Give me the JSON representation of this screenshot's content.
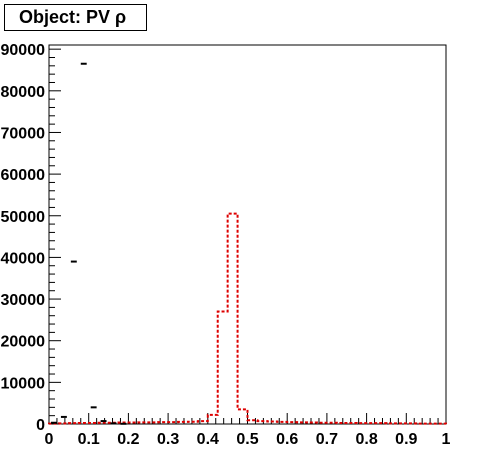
{
  "chart_data": {
    "type": "histogram",
    "title": "Object: PV ρ",
    "xlim": [
      0,
      1
    ],
    "ylim": [
      0,
      91000
    ],
    "bin_width": 0.025,
    "x_ticks": [
      "0",
      "0.1",
      "0.2",
      "0.3",
      "0.4",
      "0.5",
      "0.6",
      "0.7",
      "0.8",
      "0.9",
      "1"
    ],
    "y_ticks": [
      "0",
      "10000",
      "20000",
      "30000",
      "40000",
      "50000",
      "60000",
      "70000",
      "80000",
      "90000"
    ],
    "grid": false,
    "legend": "none",
    "series": [
      {
        "style": "markers",
        "color": "#000000",
        "x": [
          0.0125,
          0.0375,
          0.0625,
          0.0875,
          0.1125,
          0.1375,
          0.1625,
          0.1875
        ],
        "y": [
          300,
          1700,
          39000,
          86500,
          4000,
          700,
          150,
          50
        ]
      },
      {
        "style": "dashed-step",
        "color": "#dd0000",
        "x": [
          0.0125,
          0.0375,
          0.0625,
          0.0875,
          0.1125,
          0.1375,
          0.1625,
          0.1875,
          0.2125,
          0.2375,
          0.2625,
          0.2875,
          0.3125,
          0.3375,
          0.3625,
          0.3875,
          0.4125,
          0.4375,
          0.4625,
          0.4875,
          0.5125,
          0.5375,
          0.5625,
          0.5875,
          0.6125,
          0.6375,
          0.6625,
          0.6875,
          0.7125,
          0.7375,
          0.7625,
          0.7875,
          0.8125,
          0.8375,
          0.8625,
          0.8875,
          0.9125,
          0.9375,
          0.9625,
          0.9875
        ],
        "y": [
          100,
          150,
          200,
          250,
          250,
          300,
          300,
          350,
          350,
          400,
          400,
          450,
          450,
          500,
          550,
          700,
          2200,
          27000,
          50500,
          3500,
          900,
          700,
          600,
          500,
          450,
          400,
          350,
          300,
          300,
          250,
          250,
          200,
          200,
          200,
          150,
          150,
          150,
          100,
          100,
          100
        ]
      }
    ]
  }
}
